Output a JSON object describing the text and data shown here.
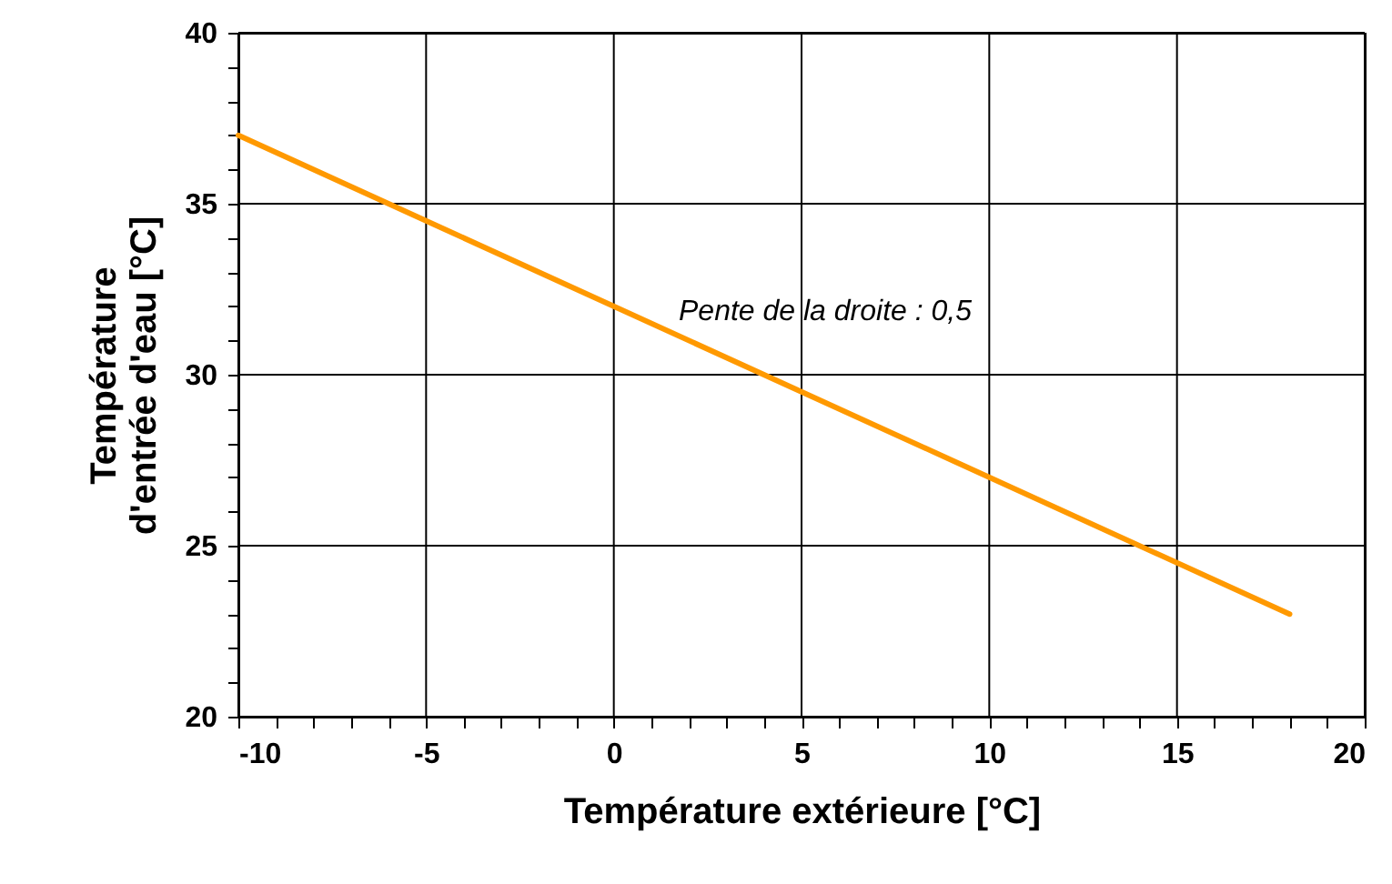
{
  "chart_data": {
    "type": "line",
    "xlabel": "Température extérieure [°C]",
    "ylabel": "Température\nd'entrée d'eau [°C]",
    "x": [
      -10,
      18
    ],
    "series": [
      {
        "color": "#ff9900",
        "values": [
          37,
          23
        ]
      }
    ],
    "xlim": [
      -10,
      20
    ],
    "ylim": [
      20,
      40
    ],
    "xticks": [
      -10,
      {
        "value": -9,
        "label": null
      },
      {
        "value": -8,
        "label": null
      },
      {
        "value": -7,
        "label": null
      },
      {
        "value": -6,
        "label": null
      },
      -5,
      {
        "value": -4,
        "label": null
      },
      {
        "value": -3,
        "label": null
      },
      {
        "value": -2,
        "label": null
      },
      {
        "value": -1,
        "label": null
      },
      0,
      {
        "value": 1,
        "label": null
      },
      {
        "value": 2,
        "label": null
      },
      {
        "value": 3,
        "label": null
      },
      {
        "value": 4,
        "label": null
      },
      5,
      {
        "value": 6,
        "label": null
      },
      {
        "value": 7,
        "label": null
      },
      {
        "value": 8,
        "label": null
      },
      {
        "value": 9,
        "label": null
      },
      10,
      {
        "value": 11,
        "label": null
      },
      {
        "value": 12,
        "label": null
      },
      {
        "value": 13,
        "label": null
      },
      {
        "value": 14,
        "label": null
      },
      15,
      {
        "value": 16,
        "label": null
      },
      {
        "value": 17,
        "label": null
      },
      {
        "value": 18,
        "label": null
      },
      {
        "value": 19,
        "label": null
      },
      20
    ],
    "yticks": [
      20,
      {
        "value": 21,
        "label": null
      },
      {
        "value": 22,
        "label": null
      },
      {
        "value": 23,
        "label": null
      },
      {
        "value": 24,
        "label": null
      },
      25,
      {
        "value": 26,
        "label": null
      },
      {
        "value": 27,
        "label": null
      },
      {
        "value": 28,
        "label": null
      },
      {
        "value": 29,
        "label": null
      },
      30,
      {
        "value": 31,
        "label": null
      },
      {
        "value": 32,
        "label": null
      },
      {
        "value": 33,
        "label": null
      },
      {
        "value": 34,
        "label": null
      },
      35,
      {
        "value": 36,
        "label": null
      },
      {
        "value": 37,
        "label": null
      },
      {
        "value": 38,
        "label": null
      },
      {
        "value": 39,
        "label": null
      },
      40
    ],
    "grid": true,
    "marker": "none",
    "line_style": "solid",
    "annotations": [
      "Pente de la droite : 0,5"
    ]
  }
}
